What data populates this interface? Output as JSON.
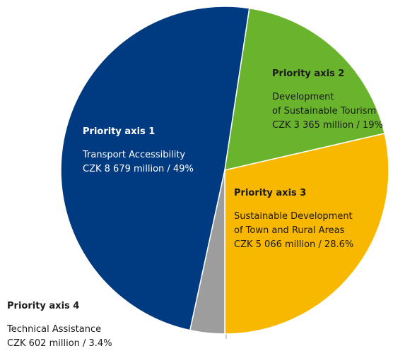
{
  "chart_data": {
    "type": "pie",
    "categories": [
      "Priority axis 1",
      "Priority axis 2",
      "Priority axis 3",
      "Priority axis 4"
    ],
    "descriptions": [
      [
        "Transport Accessibility"
      ],
      [
        "Development",
        "of Sustainable Tourism"
      ],
      [
        "Sustainable Development",
        "of Town and Rural Areas"
      ],
      [
        "Technical Assistance"
      ]
    ],
    "values": [
      49,
      19,
      28.6,
      3.4
    ],
    "value_labels": [
      "CZK 8 679 million / 49%",
      "CZK 3 365 million / 19%",
      "CZK 5 066 million / 28.6%",
      "CZK 602 million / 3.4%"
    ],
    "colors": [
      "#003a80",
      "#6ab42d",
      "#f9b800",
      "#9d9d9d"
    ]
  }
}
